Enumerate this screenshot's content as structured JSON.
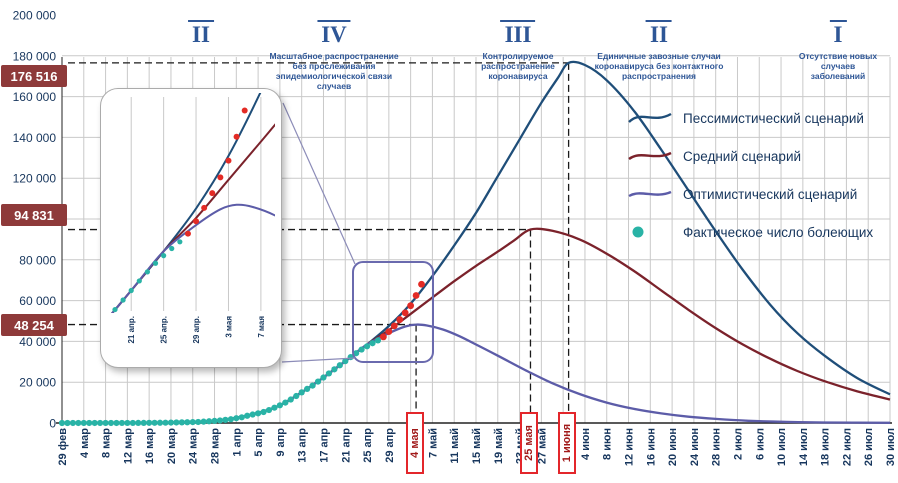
{
  "chart_data": {
    "type": "line",
    "title": "",
    "y_axis": {
      "min": 0,
      "max": 200000,
      "step": 20000,
      "labels": [
        "0",
        "20 000",
        "40 000",
        "60 000",
        "80 000",
        "100 000",
        "120 000",
        "140 000",
        "160 000",
        "180 000",
        "200 000"
      ]
    },
    "x_axis": {
      "tick_labels": [
        {
          "day": 0,
          "label": "29 фев"
        },
        {
          "day": 4,
          "label": "4 мар"
        },
        {
          "day": 8,
          "label": "8 мар"
        },
        {
          "day": 12,
          "label": "12 мар"
        },
        {
          "day": 16,
          "label": "16 мар"
        },
        {
          "day": 20,
          "label": "20 мар"
        },
        {
          "day": 24,
          "label": "24 мар"
        },
        {
          "day": 28,
          "label": "28 мар"
        },
        {
          "day": 32,
          "label": "1 апр"
        },
        {
          "day": 36,
          "label": "5 апр"
        },
        {
          "day": 40,
          "label": "9 апр"
        },
        {
          "day": 44,
          "label": "13 апр"
        },
        {
          "day": 48,
          "label": "17 апр"
        },
        {
          "day": 52,
          "label": "21 апр"
        },
        {
          "day": 56,
          "label": "25 апр"
        },
        {
          "day": 60,
          "label": "29 апр"
        },
        {
          "day": 68,
          "label": "7 май"
        },
        {
          "day": 72,
          "label": "11 май"
        },
        {
          "day": 76,
          "label": "15 май"
        },
        {
          "day": 80,
          "label": "19 май"
        },
        {
          "day": 84,
          "label": "23 май"
        },
        {
          "day": 88,
          "label": "27 май"
        },
        {
          "day": 96,
          "label": "4 июн"
        },
        {
          "day": 100,
          "label": "8 июн"
        },
        {
          "day": 104,
          "label": "12 июн"
        },
        {
          "day": 108,
          "label": "16 июн"
        },
        {
          "day": 112,
          "label": "20 июн"
        },
        {
          "day": 116,
          "label": "24 июн"
        },
        {
          "day": 120,
          "label": "28 июн"
        },
        {
          "day": 124,
          "label": "2 июл"
        },
        {
          "day": 128,
          "label": "6 июл"
        },
        {
          "day": 132,
          "label": "10 июл"
        },
        {
          "day": 136,
          "label": "14 июл"
        },
        {
          "day": 140,
          "label": "18 июл"
        },
        {
          "day": 144,
          "label": "22 июл"
        },
        {
          "day": 148,
          "label": "26 июл"
        },
        {
          "day": 152,
          "label": "30 июл"
        }
      ]
    },
    "series": [
      {
        "name": "Пессимистический сценарий",
        "color": "#1F4E79",
        "points": [
          [
            0,
            0
          ],
          [
            8,
            20
          ],
          [
            16,
            80
          ],
          [
            24,
            450
          ],
          [
            30,
            1600
          ],
          [
            36,
            5000
          ],
          [
            40,
            8700
          ],
          [
            44,
            15000
          ],
          [
            48,
            22300
          ],
          [
            52,
            30300
          ],
          [
            56,
            38500
          ],
          [
            60,
            47500
          ],
          [
            64,
            58500
          ],
          [
            68,
            72000
          ],
          [
            72,
            87000
          ],
          [
            76,
            103000
          ],
          [
            80,
            121000
          ],
          [
            84,
            139000
          ],
          [
            88,
            157000
          ],
          [
            91,
            169000
          ],
          [
            93,
            176516
          ],
          [
            96,
            175500
          ],
          [
            100,
            168000
          ],
          [
            105,
            153000
          ],
          [
            110,
            134000
          ],
          [
            115,
            114000
          ],
          [
            120,
            94000
          ],
          [
            125,
            75000
          ],
          [
            130,
            58000
          ],
          [
            135,
            44000
          ],
          [
            140,
            33000
          ],
          [
            146,
            22000
          ],
          [
            152,
            14000
          ]
        ]
      },
      {
        "name": "Средний сценарий",
        "color": "#7B222B",
        "points": [
          [
            0,
            0
          ],
          [
            8,
            20
          ],
          [
            16,
            80
          ],
          [
            24,
            450
          ],
          [
            30,
            1600
          ],
          [
            36,
            5000
          ],
          [
            40,
            8700
          ],
          [
            44,
            15000
          ],
          [
            48,
            22300
          ],
          [
            52,
            30300
          ],
          [
            56,
            38500
          ],
          [
            60,
            45500
          ],
          [
            64,
            53500
          ],
          [
            68,
            61500
          ],
          [
            72,
            69500
          ],
          [
            76,
            77000
          ],
          [
            80,
            84000
          ],
          [
            83,
            89500
          ],
          [
            86,
            94831
          ],
          [
            90,
            94200
          ],
          [
            95,
            90000
          ],
          [
            100,
            83000
          ],
          [
            105,
            74500
          ],
          [
            110,
            65000
          ],
          [
            115,
            55500
          ],
          [
            120,
            46500
          ],
          [
            125,
            38500
          ],
          [
            130,
            31500
          ],
          [
            135,
            25500
          ],
          [
            140,
            20500
          ],
          [
            146,
            15500
          ],
          [
            152,
            11500
          ]
        ]
      },
      {
        "name": "Оптимистический сценарий",
        "color": "#5C5CA8",
        "points": [
          [
            0,
            0
          ],
          [
            8,
            20
          ],
          [
            16,
            80
          ],
          [
            24,
            450
          ],
          [
            30,
            1600
          ],
          [
            36,
            5000
          ],
          [
            40,
            8700
          ],
          [
            44,
            15000
          ],
          [
            48,
            22300
          ],
          [
            52,
            30300
          ],
          [
            56,
            38500
          ],
          [
            60,
            44000
          ],
          [
            63,
            47300
          ],
          [
            65,
            48254
          ],
          [
            67,
            47800
          ],
          [
            70,
            45800
          ],
          [
            73,
            42500
          ],
          [
            76,
            38500
          ],
          [
            80,
            33000
          ],
          [
            85,
            26000
          ],
          [
            90,
            19500
          ],
          [
            95,
            14200
          ],
          [
            100,
            10000
          ],
          [
            105,
            6900
          ],
          [
            110,
            4700
          ],
          [
            115,
            3100
          ],
          [
            120,
            2000
          ],
          [
            126,
            1100
          ],
          [
            133,
            550
          ],
          [
            140,
            250
          ],
          [
            152,
            80
          ]
        ]
      }
    ],
    "actual_series": {
      "name": "Фактическое число болеющих",
      "color": "#29B3A6",
      "start_day": 0,
      "daily_values": [
        2,
        2,
        3,
        3,
        4,
        5,
        6,
        8,
        10,
        13,
        17,
        20,
        25,
        34,
        45,
        59,
        73,
        93,
        114,
        147,
        199,
        253,
        306,
        367,
        438,
        495,
        658,
        840,
        1036,
        1264,
        1534,
        1836,
        2337,
        2777,
        3548,
        4149,
        4731,
        5389,
        6343,
        7497,
        8672,
        10002,
        11517,
        13220,
        15013,
        16710,
        18328,
        20300,
        22300,
        24300,
        26300,
        28300,
        30300,
        32300,
        34200,
        36000,
        37600,
        39100,
        40500
      ]
    },
    "recent_points": {
      "color": "#E32B25",
      "start_day": 59,
      "daily_values": [
        42200,
        44800,
        47600,
        50700,
        54000,
        57500,
        62500,
        68000
      ]
    },
    "annotations": [
      {
        "value_label": "176 516",
        "value": 176516,
        "day": 93,
        "date_label": "1 июня"
      },
      {
        "value_label": "94 831",
        "value": 94831,
        "day": 86,
        "date_label": "25 мая"
      },
      {
        "value_label": "48 254",
        "value": 48254,
        "day": 65,
        "date_label": "4 мая"
      }
    ],
    "sections": [
      {
        "numeral": "II",
        "lines": []
      },
      {
        "numeral": "IV",
        "lines": [
          "Масштабное распространение",
          "без прослеживания",
          "эпидемиологической связи",
          "случаев"
        ]
      },
      {
        "numeral": "III",
        "lines": [
          "Контролируемое",
          "распространение",
          "коронавируса"
        ]
      },
      {
        "numeral": "II",
        "lines": [
          "Единичные завозные случаи",
          "коронавируса без контактного",
          "распространения"
        ]
      },
      {
        "numeral": "I",
        "lines": [
          "Отсутствие новых",
          "случаев",
          "заболеваний"
        ]
      }
    ],
    "legend": [
      {
        "label": "Пессимистический сценарий",
        "color": "#1F4E79",
        "type": "line"
      },
      {
        "label": "Средний сценарий",
        "color": "#7B222B",
        "type": "line"
      },
      {
        "label": "Оптимистический сценарий",
        "color": "#5C5CA8",
        "type": "line"
      },
      {
        "label": "Фактическое число болеющих",
        "color": "#29B3A6",
        "type": "dot"
      }
    ],
    "inset": {
      "day_min": 50,
      "day_max": 69,
      "value_min": 26000,
      "value_max": 70000,
      "x_ticks": [
        {
          "day": 52,
          "label": "21 апр."
        },
        {
          "day": 56,
          "label": "25 апр."
        },
        {
          "day": 60,
          "label": "29 апр."
        },
        {
          "day": 64,
          "label": "3 мая"
        },
        {
          "day": 68,
          "label": "7 мая"
        }
      ]
    },
    "colors": {
      "grid": "#C9C9C9",
      "axis": "#222222",
      "dashed": "#1A1A1A",
      "peak_box_bg": "#8E3A3A",
      "peak_box_text": "#FFFFFF",
      "date_box_border": "#E3262B",
      "date_box_text": "#A11A1A",
      "section_blue": "#2E5696",
      "axis_label": "#17365D",
      "inset_border": "#ABABAB",
      "zoom_box": "#6A6AAE",
      "callout": "#8C8CB8"
    }
  }
}
